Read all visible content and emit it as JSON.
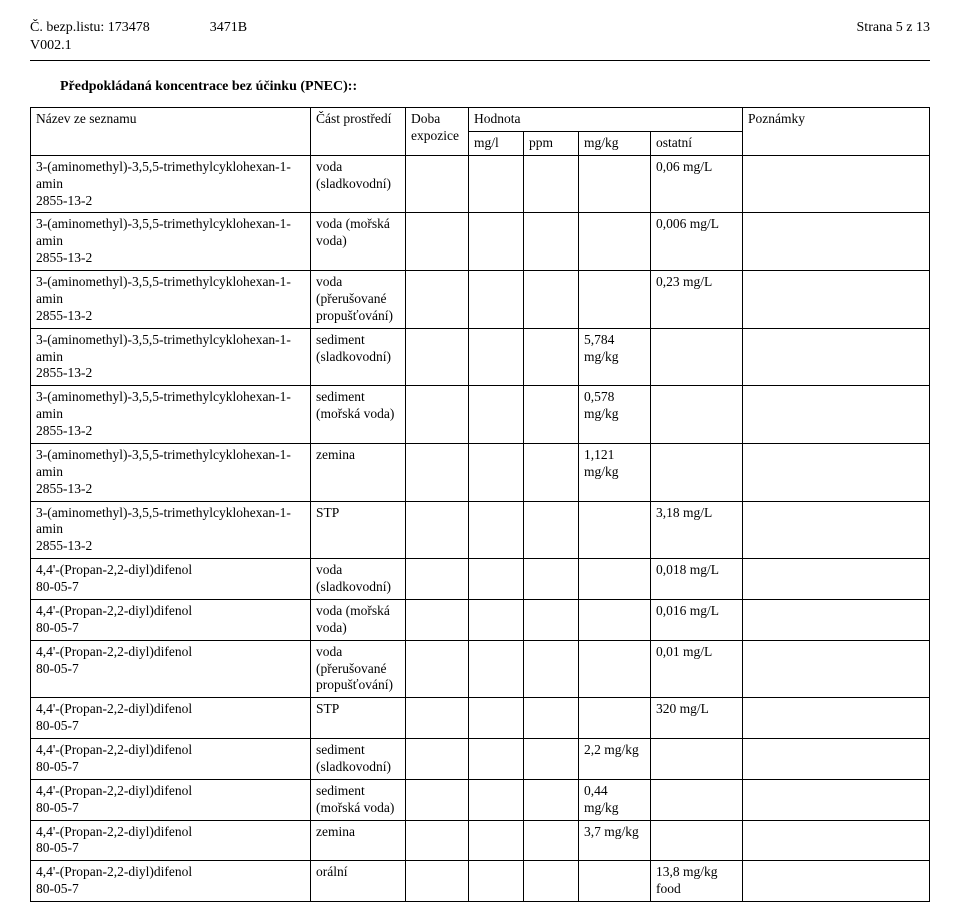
{
  "header": {
    "sheet_no_label": "Č. bezp.listu:",
    "sheet_no": "173478",
    "code": "3471B",
    "page_label": "Strana 5 z 13",
    "version": "V002.1"
  },
  "section_title": "Předpokládaná koncentrace bez účinku (PNEC)::",
  "table": {
    "headers": {
      "name": "Název ze seznamu",
      "env": "Část prostředí",
      "exposure": "Doba expozice",
      "value": "Hodnota",
      "notes": "Poznámky",
      "mgl": "mg/l",
      "ppm": "ppm",
      "mgkg": "mg/kg",
      "other": "ostatní"
    },
    "rows": [
      {
        "name": "3-(aminomethyl)-3,5,5-trimethylcyklohexan-1-amin\n2855-13-2",
        "env": "voda (sladkovodní)",
        "exp": "",
        "mgl": "",
        "ppm": "",
        "mgkg": "",
        "other": "0,06 mg/L",
        "notes": ""
      },
      {
        "name": "3-(aminomethyl)-3,5,5-trimethylcyklohexan-1-amin\n2855-13-2",
        "env": "voda (mořská voda)",
        "exp": "",
        "mgl": "",
        "ppm": "",
        "mgkg": "",
        "other": "0,006 mg/L",
        "notes": ""
      },
      {
        "name": "3-(aminomethyl)-3,5,5-trimethylcyklohexan-1-amin\n2855-13-2",
        "env": "voda (přerušované propušťování)",
        "exp": "",
        "mgl": "",
        "ppm": "",
        "mgkg": "",
        "other": "0,23 mg/L",
        "notes": ""
      },
      {
        "name": "3-(aminomethyl)-3,5,5-trimethylcyklohexan-1-amin\n2855-13-2",
        "env": "sediment (sladkovodní)",
        "exp": "",
        "mgl": "",
        "ppm": "",
        "mgkg": "5,784 mg/kg",
        "other": "",
        "notes": ""
      },
      {
        "name": "3-(aminomethyl)-3,5,5-trimethylcyklohexan-1-amin\n2855-13-2",
        "env": "sediment (mořská voda)",
        "exp": "",
        "mgl": "",
        "ppm": "",
        "mgkg": "0,578 mg/kg",
        "other": "",
        "notes": ""
      },
      {
        "name": "3-(aminomethyl)-3,5,5-trimethylcyklohexan-1-amin\n2855-13-2",
        "env": "zemina",
        "exp": "",
        "mgl": "",
        "ppm": "",
        "mgkg": "1,121 mg/kg",
        "other": "",
        "notes": ""
      },
      {
        "name": "3-(aminomethyl)-3,5,5-trimethylcyklohexan-1-amin\n2855-13-2",
        "env": "STP",
        "exp": "",
        "mgl": "",
        "ppm": "",
        "mgkg": "",
        "other": "3,18 mg/L",
        "notes": ""
      },
      {
        "name": "4,4'-(Propan-2,2-diyl)difenol\n80-05-7",
        "env": "voda (sladkovodní)",
        "exp": "",
        "mgl": "",
        "ppm": "",
        "mgkg": "",
        "other": "0,018 mg/L",
        "notes": ""
      },
      {
        "name": "4,4'-(Propan-2,2-diyl)difenol\n80-05-7",
        "env": "voda (mořská voda)",
        "exp": "",
        "mgl": "",
        "ppm": "",
        "mgkg": "",
        "other": "0,016 mg/L",
        "notes": ""
      },
      {
        "name": "4,4'-(Propan-2,2-diyl)difenol\n80-05-7",
        "env": "voda (přerušované propušťování)",
        "exp": "",
        "mgl": "",
        "ppm": "",
        "mgkg": "",
        "other": "0,01 mg/L",
        "notes": ""
      },
      {
        "name": "4,4'-(Propan-2,2-diyl)difenol\n80-05-7",
        "env": "STP",
        "exp": "",
        "mgl": "",
        "ppm": "",
        "mgkg": "",
        "other": "320 mg/L",
        "notes": ""
      },
      {
        "name": "4,4'-(Propan-2,2-diyl)difenol\n80-05-7",
        "env": "sediment (sladkovodní)",
        "exp": "",
        "mgl": "",
        "ppm": "",
        "mgkg": "2,2 mg/kg",
        "other": "",
        "notes": ""
      },
      {
        "name": "4,4'-(Propan-2,2-diyl)difenol\n80-05-7",
        "env": "sediment (mořská voda)",
        "exp": "",
        "mgl": "",
        "ppm": "",
        "mgkg": "0,44 mg/kg",
        "other": "",
        "notes": ""
      },
      {
        "name": "4,4'-(Propan-2,2-diyl)difenol\n80-05-7",
        "env": "zemina",
        "exp": "",
        "mgl": "",
        "ppm": "",
        "mgkg": "3,7 mg/kg",
        "other": "",
        "notes": ""
      },
      {
        "name": "4,4'-(Propan-2,2-diyl)difenol\n80-05-7",
        "env": "orální",
        "exp": "",
        "mgl": "",
        "ppm": "",
        "mgkg": "",
        "other": "13,8 mg/kg food",
        "notes": ""
      }
    ]
  }
}
